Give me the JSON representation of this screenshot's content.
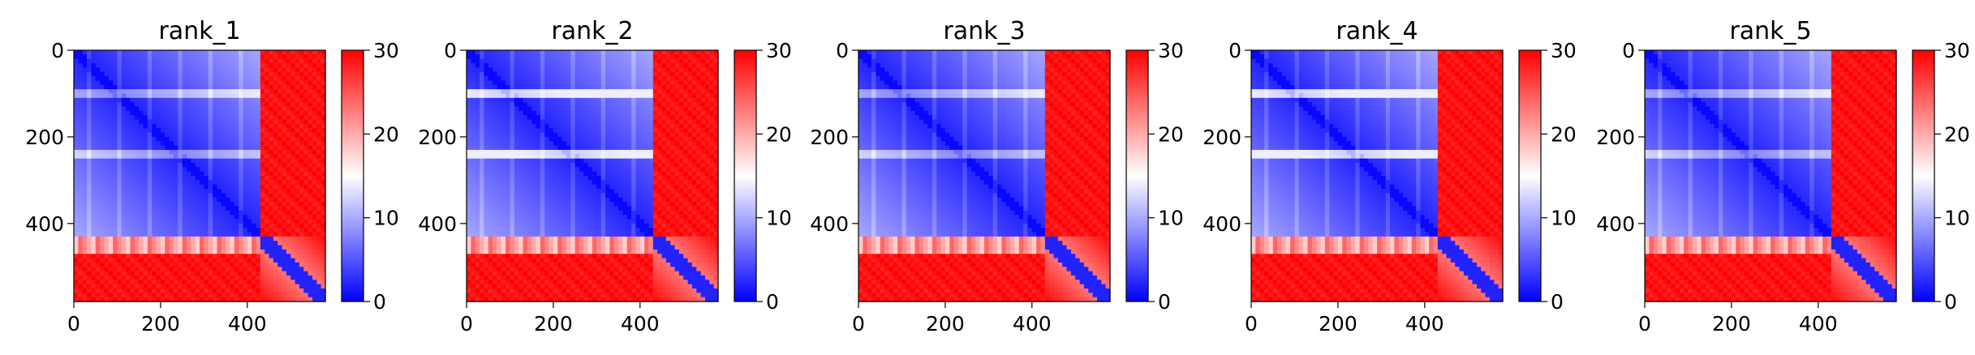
{
  "chart_data": [
    {
      "type": "heatmap",
      "title": "rank_1",
      "xlim": [
        0,
        580
      ],
      "ylim": [
        580,
        0
      ],
      "x_ticks": [
        "0",
        "200",
        "400"
      ],
      "y_ticks": [
        "0",
        "200",
        "400"
      ],
      "colorbar": {
        "ticks": [
          "0",
          "10",
          "20",
          "30"
        ],
        "range": [
          0,
          30
        ],
        "colors": [
          "#0000ff",
          "#ffffff",
          "#ff0000"
        ]
      }
    },
    {
      "type": "heatmap",
      "title": "rank_2",
      "xlim": [
        0,
        580
      ],
      "ylim": [
        580,
        0
      ],
      "x_ticks": [
        "0",
        "200",
        "400"
      ],
      "y_ticks": [
        "0",
        "200",
        "400"
      ],
      "colorbar": {
        "ticks": [
          "0",
          "10",
          "20",
          "30"
        ],
        "range": [
          0,
          30
        ],
        "colors": [
          "#0000ff",
          "#ffffff",
          "#ff0000"
        ]
      }
    },
    {
      "type": "heatmap",
      "title": "rank_3",
      "xlim": [
        0,
        580
      ],
      "ylim": [
        580,
        0
      ],
      "x_ticks": [
        "0",
        "200",
        "400"
      ],
      "y_ticks": [
        "0",
        "200",
        "400"
      ],
      "colorbar": {
        "ticks": [
          "0",
          "10",
          "20",
          "30"
        ],
        "range": [
          0,
          30
        ],
        "colors": [
          "#0000ff",
          "#ffffff",
          "#ff0000"
        ]
      }
    },
    {
      "type": "heatmap",
      "title": "rank_4",
      "xlim": [
        0,
        580
      ],
      "ylim": [
        580,
        0
      ],
      "x_ticks": [
        "0",
        "200",
        "400"
      ],
      "y_ticks": [
        "0",
        "200",
        "400"
      ],
      "colorbar": {
        "ticks": [
          "0",
          "10",
          "20",
          "30"
        ],
        "range": [
          0,
          30
        ],
        "colors": [
          "#0000ff",
          "#ffffff",
          "#ff0000"
        ]
      }
    },
    {
      "type": "heatmap",
      "title": "rank_5",
      "xlim": [
        0,
        580
      ],
      "ylim": [
        580,
        0
      ],
      "x_ticks": [
        "0",
        "200",
        "400"
      ],
      "y_ticks": [
        "0",
        "200",
        "400"
      ],
      "colorbar": {
        "ticks": [
          "0",
          "10",
          "20",
          "30"
        ],
        "range": [
          0,
          30
        ],
        "colors": [
          "#0000ff",
          "#ffffff",
          "#ff0000"
        ]
      }
    }
  ]
}
